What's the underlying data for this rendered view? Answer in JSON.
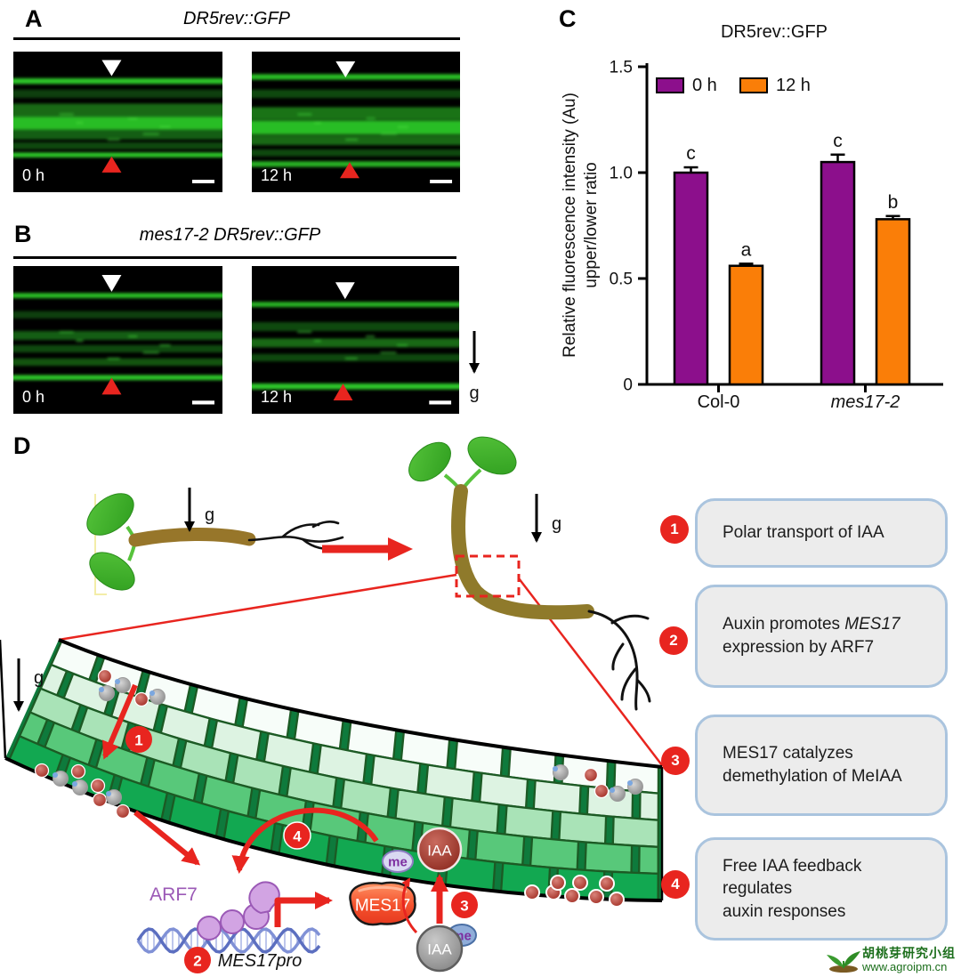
{
  "panels": {
    "a": {
      "label": "A",
      "title": "DR5rev::GFP",
      "images": [
        {
          "time": "0 h"
        },
        {
          "time": "12 h"
        }
      ]
    },
    "b": {
      "label": "B",
      "title": "mes17-2 DR5rev::GFP",
      "images": [
        {
          "time": "0 h"
        },
        {
          "time": "12 h"
        }
      ],
      "g_label": "g"
    },
    "c": {
      "label": "C"
    },
    "d": {
      "label": "D",
      "g_label": "g",
      "arf7": "ARF7",
      "mes17pro": "MES17pro",
      "mes17": "MES17",
      "iaa_red": "IAA",
      "iaa_gray": "IAA",
      "me": "me",
      "steps": [
        "1",
        "2",
        "3",
        "4"
      ],
      "boxes": [
        {
          "num": "1",
          "lines": [
            [
              {
                "t": "Polar transport of IAA"
              }
            ]
          ]
        },
        {
          "num": "2",
          "lines": [
            [
              {
                "t": "Auxin promotes "
              },
              {
                "t": "MES17",
                "i": true
              }
            ],
            [
              {
                "t": "expression by ARF7"
              }
            ]
          ]
        },
        {
          "num": "3",
          "lines": [
            [
              {
                "t": "MES17 catalyzes"
              }
            ],
            [
              {
                "t": "demethylation of MeIAA"
              }
            ]
          ]
        },
        {
          "num": "4",
          "lines": [
            [
              {
                "t": "Free IAA feedback regulates"
              }
            ],
            [
              {
                "t": "auxin responses"
              }
            ]
          ]
        }
      ],
      "watermark": {
        "line1": "胡桃芽研究小组",
        "line2": "www.agroipm.cn"
      }
    }
  },
  "chart_data": {
    "type": "bar",
    "title": "DR5rev::GFP",
    "ylabel_line1": "Relative fluorescence intensity (Au)",
    "ylabel_line2": "upper/lower ratio",
    "categories": [
      "Col-0",
      "mes17-2"
    ],
    "categories_italic": [
      false,
      true
    ],
    "series": [
      {
        "name": "0 h",
        "color": "#8C0F8C",
        "values": [
          1.0,
          1.05
        ],
        "errors": [
          0.025,
          0.035
        ],
        "letters": [
          "c",
          "c"
        ]
      },
      {
        "name": "12 h",
        "color": "#FA7E08",
        "values": [
          0.56,
          0.78
        ],
        "errors": [
          0.01,
          0.015
        ],
        "letters": [
          "a",
          "b"
        ]
      }
    ],
    "ylim": [
      0,
      1.5
    ],
    "yticks": [
      0,
      0.5,
      1.0,
      1.5
    ],
    "grid": false,
    "legend_position": "top-left"
  },
  "colors": {
    "step_red": "#e8251f",
    "arf7_purple": "#9b59b6",
    "gfp_green": "#2fd12a",
    "box_border_blue": "#aac4de",
    "watermark_green": "#1b6e1b"
  }
}
